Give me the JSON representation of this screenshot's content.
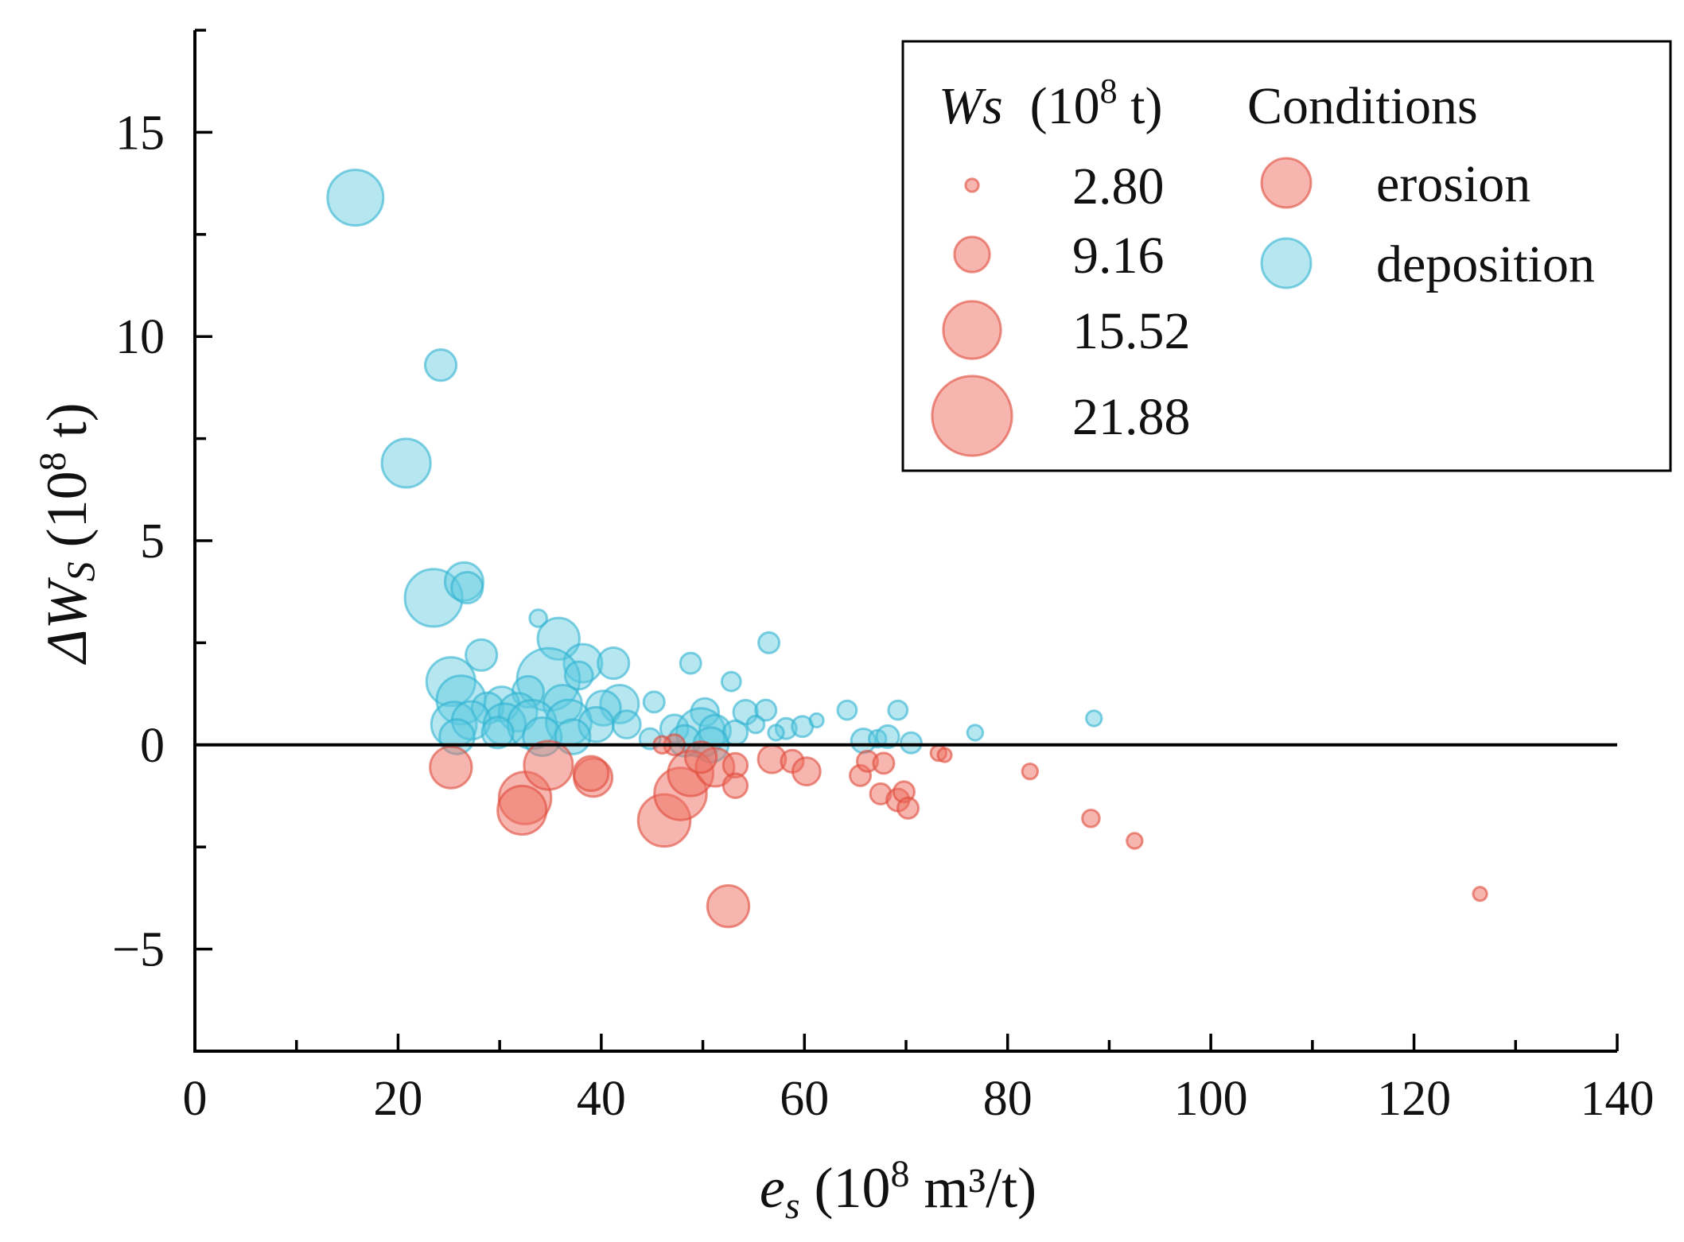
{
  "chart_data": {
    "type": "scatter",
    "xlabel": {
      "main": "e",
      "sub": "s",
      "rest": " (10",
      "sup": "8",
      "tail": " m³/t)"
    },
    "ylabel": {
      "main": "ΔW",
      "sub": "S",
      "rest": " (10",
      "sup": "8",
      "tail": " t)"
    },
    "xlim": [
      0,
      140
    ],
    "ylim": [
      -7.5,
      17.5
    ],
    "xticks": [
      0,
      20,
      40,
      60,
      80,
      100,
      120,
      140
    ],
    "xtick_labels": [
      "0",
      "20",
      "40",
      "60",
      "80",
      "100",
      "120",
      "140"
    ],
    "yticks": [
      -5,
      0,
      5,
      10,
      15
    ],
    "ytick_labels": [
      "−5",
      "0",
      "5",
      "10",
      "15"
    ],
    "zero_line": true,
    "grid": false,
    "legend": {
      "position": "top-right",
      "size_title": "Ws",
      "size_unit_prefix": "(10",
      "size_unit_sup": "8",
      "size_unit_suffix": " t)",
      "conditions_title": "Conditions",
      "size_entries": [
        {
          "label": "2.80",
          "ws": 2.8
        },
        {
          "label": "9.16",
          "ws": 9.16
        },
        {
          "label": "15.52",
          "ws": 15.52
        },
        {
          "label": "21.88",
          "ws": 21.88
        }
      ],
      "condition_entries": [
        {
          "label": "erosion",
          "key": "erosion"
        },
        {
          "label": "deposition",
          "key": "deposition"
        }
      ]
    },
    "colors": {
      "erosion": "#ee6e5f",
      "deposition": "#5ec9e1"
    },
    "series": [
      {
        "name": "deposition",
        "points": [
          [
            15.8,
            13.4,
            15.0
          ],
          [
            24.2,
            9.3,
            8.0
          ],
          [
            20.8,
            6.9,
            13.0
          ],
          [
            23.5,
            3.6,
            15.5
          ],
          [
            26.5,
            4.0,
            10.0
          ],
          [
            26.8,
            3.85,
            8.0
          ],
          [
            33.8,
            3.1,
            4.0
          ],
          [
            35.8,
            2.6,
            11.0
          ],
          [
            56.5,
            2.5,
            5.0
          ],
          [
            28.2,
            2.2,
            8.0
          ],
          [
            38.2,
            2.0,
            10.0
          ],
          [
            41.2,
            2.0,
            8.0
          ],
          [
            48.8,
            2.0,
            5.0
          ],
          [
            34.8,
            1.6,
            17.0
          ],
          [
            25.2,
            1.55,
            13.0
          ],
          [
            37.8,
            1.7,
            7.0
          ],
          [
            52.8,
            1.55,
            4.5
          ],
          [
            26.2,
            1.1,
            13.0
          ],
          [
            32.8,
            1.3,
            8.0
          ],
          [
            41.8,
            1.0,
            10.0
          ],
          [
            30.2,
            1.0,
            9.0
          ],
          [
            36.2,
            1.0,
            10.0
          ],
          [
            45.2,
            1.05,
            5.0
          ],
          [
            40.2,
            0.9,
            9.0
          ],
          [
            28.8,
            0.9,
            8.0
          ],
          [
            31.8,
            0.8,
            10.0
          ],
          [
            50.2,
            0.8,
            7.0
          ],
          [
            54.2,
            0.8,
            6.0
          ],
          [
            56.2,
            0.85,
            5.0
          ],
          [
            64.2,
            0.85,
            4.5
          ],
          [
            69.2,
            0.85,
            4.5
          ],
          [
            88.5,
            0.65,
            3.5
          ],
          [
            25.5,
            0.5,
            12.0
          ],
          [
            27.2,
            0.6,
            10.0
          ],
          [
            30.5,
            0.5,
            11.0
          ],
          [
            33.2,
            0.5,
            13.0
          ],
          [
            36.8,
            0.55,
            12.0
          ],
          [
            39.5,
            0.5,
            9.0
          ],
          [
            42.5,
            0.5,
            7.0
          ],
          [
            47.2,
            0.4,
            7.0
          ],
          [
            49.8,
            0.3,
            13.0
          ],
          [
            51.2,
            0.35,
            8.0
          ],
          [
            53.2,
            0.3,
            6.0
          ],
          [
            58.2,
            0.4,
            5.0
          ],
          [
            59.8,
            0.45,
            5.0
          ],
          [
            61.2,
            0.6,
            3.0
          ],
          [
            76.8,
            0.3,
            3.5
          ],
          [
            25.8,
            0.2,
            9.0
          ],
          [
            29.8,
            0.3,
            8.0
          ],
          [
            34.2,
            0.2,
            10.0
          ],
          [
            37.2,
            0.2,
            9.0
          ],
          [
            44.8,
            0.15,
            5.0
          ],
          [
            48.2,
            0.1,
            8.0
          ],
          [
            50.8,
            0.0,
            9.0
          ],
          [
            57.2,
            0.3,
            3.5
          ],
          [
            65.8,
            0.1,
            6.0
          ],
          [
            67.2,
            0.15,
            4.0
          ],
          [
            68.2,
            0.2,
            5.5
          ],
          [
            70.5,
            0.05,
            5.0
          ],
          [
            55.2,
            0.5,
            4.0
          ]
        ]
      },
      {
        "name": "erosion",
        "points": [
          [
            25.2,
            -0.55,
            11.0
          ],
          [
            32.5,
            -1.3,
            14.0
          ],
          [
            32.2,
            -1.6,
            13.0
          ],
          [
            34.8,
            -0.5,
            13.0
          ],
          [
            39.2,
            -0.8,
            10.0
          ],
          [
            39.0,
            -0.7,
            9.0
          ],
          [
            46.2,
            -1.85,
            14.0
          ],
          [
            47.8,
            -1.2,
            14.0
          ],
          [
            48.8,
            -0.7,
            12.0
          ],
          [
            51.2,
            -0.55,
            10.0
          ],
          [
            52.5,
            -3.95,
            11.0
          ],
          [
            53.2,
            -0.5,
            6.0
          ],
          [
            53.2,
            -1.0,
            6.0
          ],
          [
            56.8,
            -0.35,
            7.0
          ],
          [
            58.8,
            -0.4,
            5.5
          ],
          [
            60.2,
            -0.65,
            7.0
          ],
          [
            47.2,
            0.0,
            5.0
          ],
          [
            46.0,
            0.0,
            4.0
          ],
          [
            65.5,
            -0.75,
            5.0
          ],
          [
            66.2,
            -0.4,
            5.0
          ],
          [
            67.5,
            -1.2,
            5.0
          ],
          [
            67.8,
            -0.45,
            5.0
          ],
          [
            69.2,
            -1.35,
            5.5
          ],
          [
            69.8,
            -1.15,
            5.0
          ],
          [
            70.2,
            -1.55,
            5.0
          ],
          [
            73.2,
            -0.2,
            3.5
          ],
          [
            73.8,
            -0.25,
            3.0
          ],
          [
            82.2,
            -0.65,
            3.5
          ],
          [
            88.2,
            -1.8,
            4.0
          ],
          [
            92.5,
            -2.35,
            3.5
          ],
          [
            126.5,
            -3.65,
            3.0
          ],
          [
            49.8,
            -0.3,
            8.0
          ]
        ]
      }
    ]
  }
}
